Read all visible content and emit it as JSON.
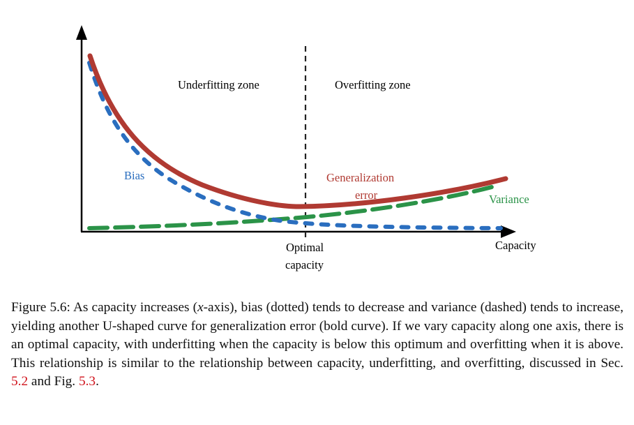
{
  "diagram": {
    "zones": {
      "left": "Underfitting zone",
      "right": "Overfitting zone"
    },
    "curves": {
      "bias": {
        "label": "Bias",
        "color": "#2a6ebf",
        "style": "dotted"
      },
      "generalization": {
        "label_line1": "Generalization",
        "label_line2": "error",
        "color": "#b03a32",
        "style": "bold"
      },
      "variance": {
        "label": "Variance",
        "color": "#2b9348",
        "style": "dashed"
      }
    },
    "optimal": {
      "line1": "Optimal",
      "line2": "capacity"
    },
    "x_axis_label": "Capacity"
  },
  "caption": {
    "prefix": "Figure 5.6: As capacity increases (",
    "math_x": "x",
    "part2": "-axis), bias (dotted) tends to decrease and variance (dashed) tends to increase, yielding another U-shaped curve for generalization error (bold curve). If we vary capacity along one axis, there is an optimal capacity, with underfitting when the capacity is below this optimum and overfitting when it is above. This relationship is similar to the relationship between capacity, underfitting, and overfitting, discussed in Sec. ",
    "ref1": "5.2",
    "part3": " and Fig. ",
    "ref2": "5.3",
    "suffix": "."
  }
}
